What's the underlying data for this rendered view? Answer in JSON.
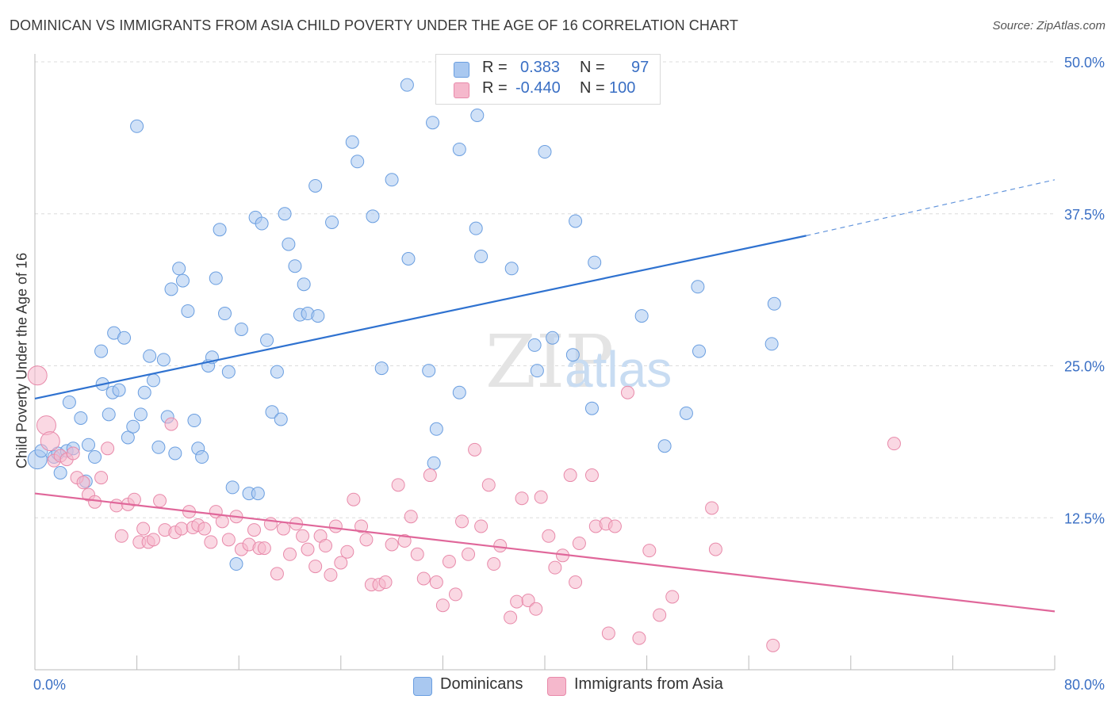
{
  "header": {
    "title": "DOMINICAN VS IMMIGRANTS FROM ASIA CHILD POVERTY UNDER THE AGE OF 16 CORRELATION CHART",
    "source": "Source: ZipAtlas.com"
  },
  "legend": {
    "r_label": "R =",
    "n_label": "N =",
    "series": [
      {
        "r": "0.383",
        "n": "97"
      },
      {
        "r": "-0.440",
        "n": "100"
      }
    ]
  },
  "bottom_legend": [
    "Dominicans",
    "Immigrants from Asia"
  ],
  "watermark": {
    "zip": "ZIP",
    "atlas": "atlas"
  },
  "colors": {
    "blue_fill": "#a9c8f0",
    "blue_stroke": "#6a9ee0",
    "blue_line": "#2f72d0",
    "pink_fill": "#f5b8cc",
    "pink_stroke": "#e88aaa",
    "pink_line": "#e0679a",
    "tick_label": "#3a6fc4",
    "grid": "#dcdcdc"
  },
  "chart_data": {
    "type": "scatter",
    "title": "DOMINICAN VS IMMIGRANTS FROM ASIA CHILD POVERTY UNDER THE AGE OF 16 CORRELATION CHART",
    "xlabel": "",
    "ylabel": "Child Poverty Under the Age of 16",
    "xlim": [
      0,
      80
    ],
    "ylim": [
      0,
      50
    ],
    "x_tick_labels": [
      "0.0%",
      "80.0%"
    ],
    "y_ticks": [
      12.5,
      25.0,
      37.5,
      50.0
    ],
    "y_tick_labels": [
      "12.5%",
      "25.0%",
      "37.5%",
      "50.0%"
    ],
    "grid": "horizontal dashed",
    "legend_position": "top-center",
    "series": [
      {
        "name": "Dominicans",
        "r": 0.383,
        "n": 97,
        "trend": {
          "x0": 0,
          "y0": 22.3,
          "x1": 60.5,
          "y1": 35.7,
          "dash_x1": 80,
          "dash_y1": 40.3
        },
        "points": [
          [
            0.2,
            17.3,
            2
          ],
          [
            0.5,
            18.0,
            1
          ],
          [
            1.5,
            17.5,
            1
          ],
          [
            1.8,
            17.8,
            1
          ],
          [
            2.0,
            16.2,
            1
          ],
          [
            2.5,
            18.0,
            1
          ],
          [
            3.0,
            18.2,
            1
          ],
          [
            2.7,
            22.0,
            1
          ],
          [
            3.6,
            20.7,
            1
          ],
          [
            4.2,
            18.5,
            1
          ],
          [
            4.0,
            15.5,
            1
          ],
          [
            4.7,
            17.5,
            1
          ],
          [
            5.2,
            26.2,
            1
          ],
          [
            5.3,
            23.5,
            1
          ],
          [
            5.8,
            21.0,
            1
          ],
          [
            6.1,
            22.8,
            1
          ],
          [
            6.2,
            27.7,
            1
          ],
          [
            6.6,
            23.0,
            1
          ],
          [
            7.0,
            27.3,
            1
          ],
          [
            7.3,
            19.1,
            1
          ],
          [
            7.7,
            20.0,
            1
          ],
          [
            8.0,
            44.7,
            1
          ],
          [
            8.3,
            21.0,
            1
          ],
          [
            8.6,
            22.8,
            1
          ],
          [
            9.0,
            25.8,
            1
          ],
          [
            9.3,
            23.8,
            1
          ],
          [
            9.7,
            18.3,
            1
          ],
          [
            10.1,
            25.5,
            1
          ],
          [
            10.4,
            20.8,
            1
          ],
          [
            10.7,
            31.3,
            1
          ],
          [
            11.0,
            17.8,
            1
          ],
          [
            11.3,
            33.0,
            1
          ],
          [
            11.6,
            32.0,
            1
          ],
          [
            12.0,
            29.5,
            1
          ],
          [
            12.5,
            20.5,
            1
          ],
          [
            12.8,
            18.2,
            1
          ],
          [
            13.1,
            17.5,
            1
          ],
          [
            13.6,
            25.0,
            1
          ],
          [
            13.9,
            25.7,
            1
          ],
          [
            14.2,
            32.2,
            1
          ],
          [
            14.5,
            36.2,
            1
          ],
          [
            14.9,
            29.3,
            1
          ],
          [
            15.2,
            24.5,
            1
          ],
          [
            15.5,
            15.0,
            1
          ],
          [
            15.8,
            8.7,
            1
          ],
          [
            16.2,
            28.0,
            1
          ],
          [
            16.8,
            14.5,
            1
          ],
          [
            17.3,
            37.2,
            1
          ],
          [
            17.5,
            14.5,
            1
          ],
          [
            17.8,
            36.7,
            1
          ],
          [
            18.2,
            27.1,
            1
          ],
          [
            18.6,
            21.2,
            1
          ],
          [
            19.0,
            24.5,
            1
          ],
          [
            19.3,
            20.6,
            1
          ],
          [
            19.6,
            37.5,
            1
          ],
          [
            19.9,
            35.0,
            1
          ],
          [
            20.4,
            33.2,
            1
          ],
          [
            20.8,
            29.2,
            1
          ],
          [
            21.1,
            31.7,
            1
          ],
          [
            21.4,
            29.3,
            1
          ],
          [
            22.2,
            29.1,
            1
          ],
          [
            22.0,
            39.8,
            1
          ],
          [
            23.3,
            36.8,
            1
          ],
          [
            24.9,
            43.4,
            1
          ],
          [
            25.3,
            41.8,
            1
          ],
          [
            26.5,
            37.3,
            1
          ],
          [
            27.2,
            24.8,
            1
          ],
          [
            28.0,
            40.3,
            1
          ],
          [
            29.2,
            48.1,
            1
          ],
          [
            29.3,
            33.8,
            1
          ],
          [
            30.9,
            24.6,
            1
          ],
          [
            31.2,
            45.0,
            1
          ],
          [
            31.5,
            19.8,
            1
          ],
          [
            31.3,
            17.0,
            1
          ],
          [
            33.3,
            42.8,
            1
          ],
          [
            33.3,
            22.8,
            1
          ],
          [
            34.6,
            36.3,
            1
          ],
          [
            34.7,
            45.6,
            1
          ],
          [
            35.0,
            34.0,
            1
          ],
          [
            37.4,
            33.0,
            1
          ],
          [
            39.2,
            26.7,
            1
          ],
          [
            39.4,
            24.6,
            1
          ],
          [
            40.0,
            42.6,
            1
          ],
          [
            40.6,
            27.3,
            1
          ],
          [
            42.2,
            25.9,
            1
          ],
          [
            42.4,
            36.9,
            1
          ],
          [
            43.7,
            21.5,
            1
          ],
          [
            43.9,
            33.5,
            1
          ],
          [
            47.6,
            29.1,
            1
          ],
          [
            49.4,
            18.4,
            1
          ],
          [
            51.1,
            21.1,
            1
          ],
          [
            52.0,
            31.5,
            1
          ],
          [
            52.1,
            26.2,
            1
          ],
          [
            57.8,
            26.8,
            1
          ],
          [
            58.0,
            30.1,
            1
          ]
        ]
      },
      {
        "name": "Immigrants from Asia",
        "r": -0.44,
        "n": 100,
        "trend": {
          "x0": 0,
          "y0": 14.5,
          "x1": 80,
          "y1": 4.8
        },
        "points": [
          [
            0.2,
            24.2,
            2
          ],
          [
            0.9,
            20.1,
            2
          ],
          [
            1.2,
            18.8,
            2
          ],
          [
            1.5,
            17.2,
            1
          ],
          [
            2.0,
            17.6,
            1
          ],
          [
            2.5,
            17.3,
            1
          ],
          [
            3.0,
            17.8,
            1
          ],
          [
            3.3,
            15.8,
            1
          ],
          [
            3.8,
            15.4,
            1
          ],
          [
            4.2,
            14.4,
            1
          ],
          [
            4.7,
            13.8,
            1
          ],
          [
            5.2,
            15.8,
            1
          ],
          [
            5.7,
            18.2,
            1
          ],
          [
            6.4,
            13.5,
            1
          ],
          [
            6.8,
            11.0,
            1
          ],
          [
            7.3,
            13.6,
            1
          ],
          [
            7.8,
            14.0,
            1
          ],
          [
            8.2,
            10.5,
            1
          ],
          [
            8.5,
            11.6,
            1
          ],
          [
            8.9,
            10.5,
            1
          ],
          [
            9.3,
            10.7,
            1
          ],
          [
            9.8,
            13.9,
            1
          ],
          [
            10.2,
            11.5,
            1
          ],
          [
            10.7,
            20.2,
            1
          ],
          [
            11.0,
            11.3,
            1
          ],
          [
            11.5,
            11.6,
            1
          ],
          [
            12.1,
            13.0,
            1
          ],
          [
            12.4,
            11.7,
            1
          ],
          [
            12.8,
            11.9,
            1
          ],
          [
            13.3,
            11.6,
            1
          ],
          [
            13.8,
            10.5,
            1
          ],
          [
            14.2,
            13.0,
            1
          ],
          [
            14.7,
            12.2,
            1
          ],
          [
            15.2,
            10.7,
            1
          ],
          [
            15.8,
            12.6,
            1
          ],
          [
            16.2,
            9.9,
            1
          ],
          [
            16.8,
            10.3,
            1
          ],
          [
            17.2,
            11.5,
            1
          ],
          [
            17.6,
            10.0,
            1
          ],
          [
            18.0,
            10.0,
            1
          ],
          [
            18.5,
            12.0,
            1
          ],
          [
            19.0,
            7.9,
            1
          ],
          [
            19.5,
            11.6,
            1
          ],
          [
            20.0,
            9.5,
            1
          ],
          [
            20.5,
            12.0,
            1
          ],
          [
            21.0,
            11.0,
            1
          ],
          [
            21.4,
            9.9,
            1
          ],
          [
            22.0,
            8.5,
            1
          ],
          [
            22.4,
            11.0,
            1
          ],
          [
            22.8,
            10.2,
            1
          ],
          [
            23.2,
            7.8,
            1
          ],
          [
            23.6,
            11.8,
            1
          ],
          [
            24.0,
            8.8,
            1
          ],
          [
            24.5,
            9.7,
            1
          ],
          [
            25.0,
            14.0,
            1
          ],
          [
            25.6,
            11.8,
            1
          ],
          [
            26.0,
            10.7,
            1
          ],
          [
            26.4,
            7.0,
            1
          ],
          [
            27.0,
            7.0,
            1
          ],
          [
            27.5,
            7.2,
            1
          ],
          [
            28.0,
            10.3,
            1
          ],
          [
            28.5,
            15.2,
            1
          ],
          [
            29.0,
            10.6,
            1
          ],
          [
            29.5,
            12.6,
            1
          ],
          [
            30.0,
            9.5,
            1
          ],
          [
            30.5,
            7.5,
            1
          ],
          [
            31.0,
            16.0,
            1
          ],
          [
            31.5,
            7.2,
            1
          ],
          [
            32.0,
            5.3,
            1
          ],
          [
            32.5,
            8.9,
            1
          ],
          [
            33.0,
            6.2,
            1
          ],
          [
            33.5,
            12.2,
            1
          ],
          [
            34.0,
            9.5,
            1
          ],
          [
            34.5,
            18.1,
            1
          ],
          [
            35.0,
            11.8,
            1
          ],
          [
            35.6,
            15.2,
            1
          ],
          [
            36.0,
            8.7,
            1
          ],
          [
            36.5,
            10.2,
            1
          ],
          [
            37.3,
            4.3,
            1
          ],
          [
            37.8,
            5.6,
            1
          ],
          [
            38.2,
            14.1,
            1
          ],
          [
            38.7,
            5.7,
            1
          ],
          [
            39.3,
            5.0,
            1
          ],
          [
            39.7,
            14.2,
            1
          ],
          [
            40.3,
            11.0,
            1
          ],
          [
            40.8,
            8.4,
            1
          ],
          [
            41.4,
            9.4,
            1
          ],
          [
            42.0,
            16.0,
            1
          ],
          [
            42.4,
            7.2,
            1
          ],
          [
            42.7,
            10.4,
            1
          ],
          [
            43.7,
            16.0,
            1
          ],
          [
            44.0,
            11.8,
            1
          ],
          [
            44.8,
            12.0,
            1
          ],
          [
            45.0,
            3.0,
            1
          ],
          [
            45.5,
            11.8,
            1
          ],
          [
            46.5,
            22.8,
            1
          ],
          [
            47.4,
            2.6,
            1
          ],
          [
            48.2,
            9.8,
            1
          ],
          [
            49.0,
            4.5,
            1
          ],
          [
            50.0,
            6.0,
            1
          ],
          [
            53.1,
            13.3,
            1
          ],
          [
            53.4,
            9.9,
            1
          ],
          [
            57.9,
            2.0,
            1
          ],
          [
            67.4,
            18.6,
            1
          ]
        ]
      }
    ]
  }
}
